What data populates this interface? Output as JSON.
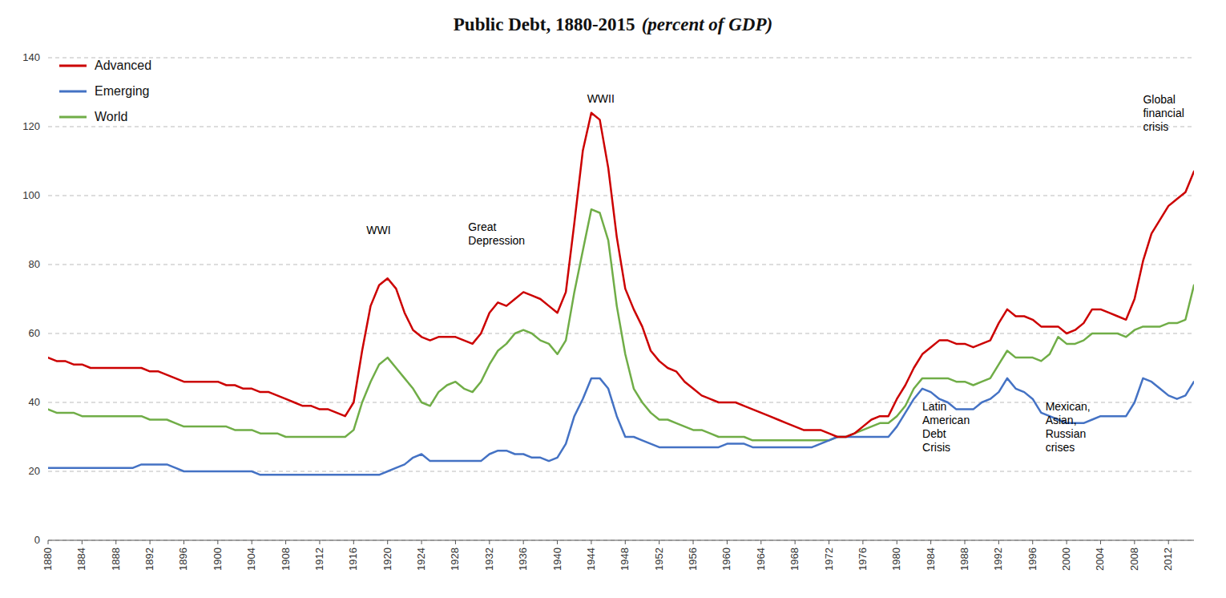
{
  "chart_data": {
    "type": "line",
    "title": "Public Debt, 1880-2015",
    "subtitle": "(percent of GDP)",
    "x": [
      1880,
      1881,
      1882,
      1883,
      1884,
      1885,
      1886,
      1887,
      1888,
      1889,
      1890,
      1891,
      1892,
      1893,
      1894,
      1895,
      1896,
      1897,
      1898,
      1899,
      1900,
      1901,
      1902,
      1903,
      1904,
      1905,
      1906,
      1907,
      1908,
      1909,
      1910,
      1911,
      1912,
      1913,
      1914,
      1915,
      1916,
      1917,
      1918,
      1919,
      1920,
      1921,
      1922,
      1923,
      1924,
      1925,
      1926,
      1927,
      1928,
      1929,
      1930,
      1931,
      1932,
      1933,
      1934,
      1935,
      1936,
      1937,
      1938,
      1939,
      1940,
      1941,
      1942,
      1943,
      1944,
      1945,
      1946,
      1947,
      1948,
      1949,
      1950,
      1951,
      1952,
      1953,
      1954,
      1955,
      1956,
      1957,
      1958,
      1959,
      1960,
      1961,
      1962,
      1963,
      1964,
      1965,
      1966,
      1967,
      1968,
      1969,
      1970,
      1971,
      1972,
      1973,
      1974,
      1975,
      1976,
      1977,
      1978,
      1979,
      1980,
      1981,
      1982,
      1983,
      1984,
      1985,
      1986,
      1987,
      1988,
      1989,
      1990,
      1991,
      1992,
      1993,
      1994,
      1995,
      1996,
      1997,
      1998,
      1999,
      2000,
      2001,
      2002,
      2003,
      2004,
      2005,
      2006,
      2007,
      2008,
      2009,
      2010,
      2011,
      2012,
      2013,
      2014,
      2015
    ],
    "series": [
      {
        "name": "Advanced",
        "color": "#cc0000",
        "values": [
          53,
          52,
          52,
          51,
          51,
          50,
          50,
          50,
          50,
          50,
          50,
          50,
          49,
          49,
          48,
          47,
          46,
          46,
          46,
          46,
          46,
          45,
          45,
          44,
          44,
          43,
          43,
          42,
          41,
          40,
          39,
          39,
          38,
          38,
          37,
          36,
          40,
          55,
          68,
          74,
          76,
          73,
          66,
          61,
          59,
          58,
          59,
          59,
          59,
          58,
          57,
          60,
          66,
          69,
          68,
          70,
          72,
          71,
          70,
          68,
          66,
          72,
          92,
          113,
          124,
          122,
          108,
          88,
          73,
          67,
          62,
          55,
          52,
          50,
          49,
          46,
          44,
          42,
          41,
          40,
          40,
          40,
          39,
          38,
          37,
          36,
          35,
          34,
          33,
          32,
          32,
          32,
          31,
          30,
          30,
          31,
          33,
          35,
          36,
          36,
          41,
          45,
          50,
          54,
          56,
          58,
          58,
          57,
          57,
          56,
          57,
          58,
          63,
          67,
          65,
          65,
          64,
          62,
          62,
          62,
          60,
          61,
          63,
          67,
          67,
          66,
          65,
          64,
          70,
          81,
          89,
          93,
          97,
          99,
          101,
          107
        ]
      },
      {
        "name": "Emerging",
        "color": "#4472c4",
        "values": [
          21,
          21,
          21,
          21,
          21,
          21,
          21,
          21,
          21,
          21,
          21,
          22,
          22,
          22,
          22,
          21,
          20,
          20,
          20,
          20,
          20,
          20,
          20,
          20,
          20,
          19,
          19,
          19,
          19,
          19,
          19,
          19,
          19,
          19,
          19,
          19,
          19,
          19,
          19,
          19,
          20,
          21,
          22,
          24,
          25,
          23,
          23,
          23,
          23,
          23,
          23,
          23,
          25,
          26,
          26,
          25,
          25,
          24,
          24,
          23,
          24,
          28,
          36,
          41,
          47,
          47,
          44,
          36,
          30,
          30,
          29,
          28,
          27,
          27,
          27,
          27,
          27,
          27,
          27,
          27,
          28,
          28,
          28,
          27,
          27,
          27,
          27,
          27,
          27,
          27,
          27,
          28,
          29,
          30,
          30,
          30,
          30,
          30,
          30,
          30,
          33,
          37,
          41,
          44,
          43,
          41,
          40,
          38,
          38,
          38,
          40,
          41,
          43,
          47,
          44,
          43,
          41,
          37,
          36,
          35,
          34,
          34,
          34,
          35,
          36,
          36,
          36,
          36,
          40,
          47,
          46,
          44,
          42,
          41,
          42,
          46
        ]
      },
      {
        "name": "World",
        "color": "#70ad47",
        "values": [
          38,
          37,
          37,
          37,
          36,
          36,
          36,
          36,
          36,
          36,
          36,
          36,
          35,
          35,
          35,
          34,
          33,
          33,
          33,
          33,
          33,
          33,
          32,
          32,
          32,
          31,
          31,
          31,
          30,
          30,
          30,
          30,
          30,
          30,
          30,
          30,
          32,
          40,
          46,
          51,
          53,
          50,
          47,
          44,
          40,
          39,
          43,
          45,
          46,
          44,
          43,
          46,
          51,
          55,
          57,
          60,
          61,
          60,
          58,
          57,
          54,
          58,
          72,
          84,
          96,
          95,
          87,
          68,
          54,
          44,
          40,
          37,
          35,
          35,
          34,
          33,
          32,
          32,
          31,
          30,
          30,
          30,
          30,
          29,
          29,
          29,
          29,
          29,
          29,
          29,
          29,
          29,
          29,
          30,
          30,
          31,
          32,
          33,
          34,
          34,
          36,
          39,
          44,
          47,
          47,
          47,
          47,
          46,
          46,
          45,
          46,
          47,
          51,
          55,
          53,
          53,
          53,
          52,
          54,
          59,
          57,
          57,
          58,
          60,
          60,
          60,
          60,
          59,
          61,
          62,
          62,
          62,
          63,
          63,
          64,
          74
        ]
      }
    ],
    "xlim": [
      1880,
      2015
    ],
    "xticks": [
      1880,
      1884,
      1888,
      1892,
      1896,
      1900,
      1904,
      1908,
      1912,
      1916,
      1920,
      1924,
      1928,
      1932,
      1936,
      1940,
      1944,
      1948,
      1952,
      1956,
      1960,
      1964,
      1968,
      1972,
      1976,
      1980,
      1984,
      1988,
      1992,
      1996,
      2000,
      2004,
      2008,
      2012
    ],
    "ylim": [
      0,
      140
    ],
    "yticks": [
      0,
      20,
      40,
      60,
      80,
      100,
      120,
      140
    ],
    "grid": true,
    "legend": "upper left",
    "annotations": [
      {
        "text": "WWI",
        "x": 1917.5,
        "y": 88
      },
      {
        "text": "Great\nDepression",
        "x": 1929.5,
        "y": 85
      },
      {
        "text": "WWII",
        "x": 1943.5,
        "y": 126
      },
      {
        "text": "Latin\nAmerican\nDebt\nCrisis",
        "x": 1983,
        "y": 41
      },
      {
        "text": "Mexican,\nAsian,\nRussian\ncrises",
        "x": 1997.5,
        "y": 41
      },
      {
        "text": "Global\nfinancial\ncrisis",
        "x": 2009.0,
        "y": 118
      }
    ]
  }
}
